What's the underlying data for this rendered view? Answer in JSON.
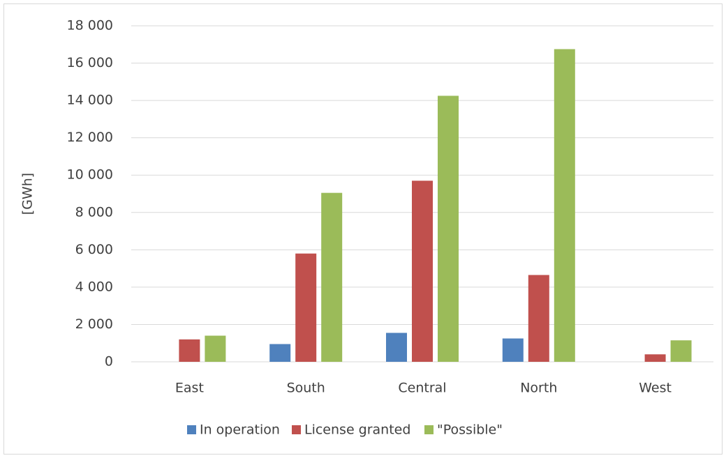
{
  "chart_data": {
    "type": "bar",
    "y_label": "[GWh]",
    "categories": [
      "East",
      "South",
      "Central",
      "North",
      "West"
    ],
    "series": [
      {
        "name": "In operation",
        "color": "#4f81bd",
        "values": [
          0,
          950,
          1550,
          1250,
          0
        ]
      },
      {
        "name": "License granted",
        "color": "#c0504d",
        "values": [
          1200,
          5800,
          9700,
          4650,
          400
        ]
      },
      {
        "name": "\"Possible\"",
        "color": "#9bbb59",
        "values": [
          1400,
          9050,
          14250,
          16750,
          1150
        ]
      }
    ],
    "ylim": [
      0,
      18000
    ],
    "yticks": [
      0,
      {
        "value": 2000,
        "label": "2 000"
      },
      {
        "value": 4000,
        "label": "4 000"
      },
      {
        "value": 6000,
        "label": "6 000"
      },
      {
        "value": 8000,
        "label": "8 000"
      },
      {
        "value": 10000,
        "label": "10 000"
      },
      {
        "value": 12000,
        "label": "12 000"
      },
      {
        "value": 14000,
        "label": "14 000"
      },
      {
        "value": 16000,
        "label": "16 000"
      },
      {
        "value": 18000,
        "label": "18 000"
      }
    ],
    "grid": true,
    "legend": "bottom"
  }
}
